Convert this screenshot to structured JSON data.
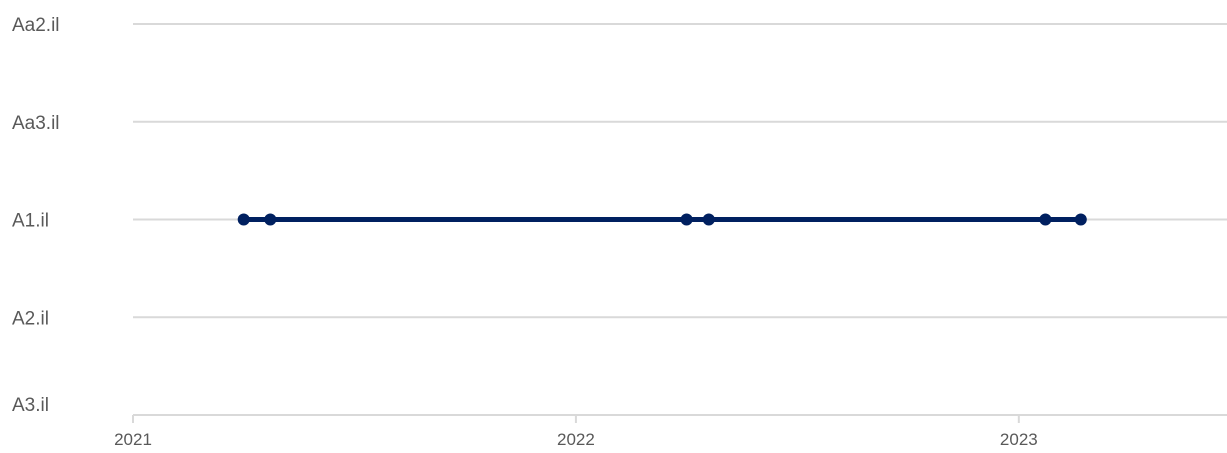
{
  "chart_data": {
    "type": "line",
    "y_categories": [
      "Aa2.il",
      "Aa3.il",
      "A1.il",
      "A2.il",
      "A3.il"
    ],
    "x_ticks": [
      "2021",
      "2022",
      "2023"
    ],
    "x_tick_values": [
      2021.0,
      2022.0,
      2023.0
    ],
    "xlim": [
      2021.0,
      2023.47
    ],
    "series": [
      {
        "color": "#002060",
        "points": [
          {
            "x": 2021.25,
            "y": "A1.il"
          },
          {
            "x": 2021.31,
            "y": "A1.il"
          },
          {
            "x": 2022.25,
            "y": "A1.il"
          },
          {
            "x": 2022.3,
            "y": "A1.il"
          },
          {
            "x": 2023.06,
            "y": "A1.il"
          },
          {
            "x": 2023.14,
            "y": "A1.il"
          }
        ]
      }
    ],
    "grid": true,
    "legend": "none",
    "colors": {
      "gridline": "#d9d9d9",
      "label": "#595959",
      "series": "#002060"
    }
  }
}
